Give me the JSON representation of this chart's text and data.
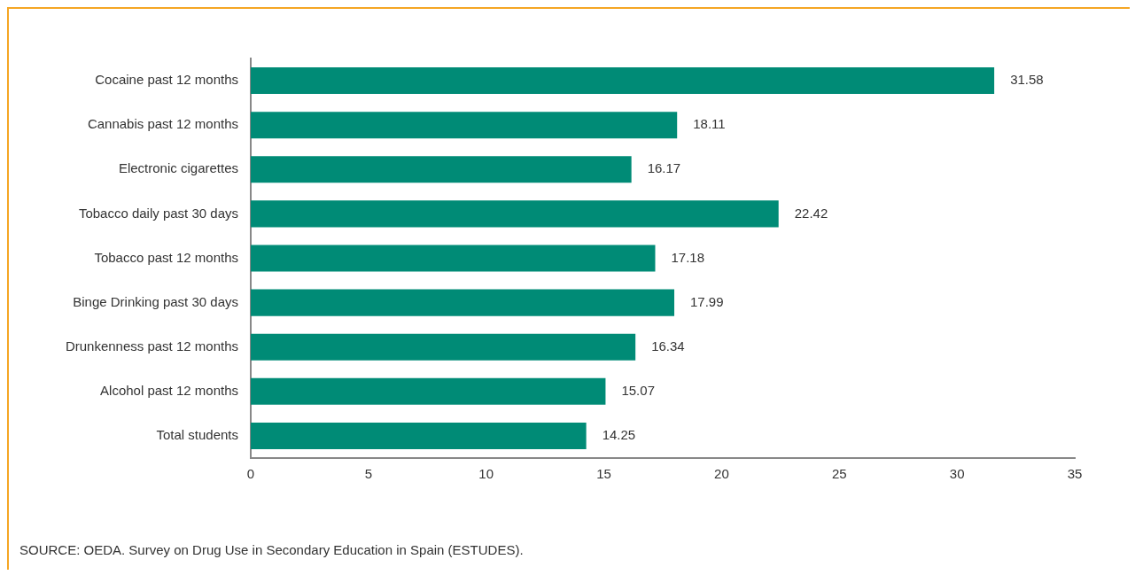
{
  "chart_data": {
    "type": "bar",
    "orientation": "horizontal",
    "categories": [
      "Cocaine past 12 months",
      "Cannabis past 12 months",
      "Electronic cigarettes",
      "Tobacco daily past 30 days",
      "Tobacco past 12 months",
      "Binge Drinking past 30 days",
      "Drunkenness past 12 months",
      "Alcohol past 12 months",
      "Total students"
    ],
    "values": [
      31.58,
      18.11,
      16.17,
      22.42,
      17.18,
      17.99,
      16.34,
      15.07,
      14.25
    ],
    "color": "#008b76",
    "xlim": [
      0,
      35
    ],
    "xticks": [
      0,
      5,
      10,
      15,
      20,
      25,
      30,
      35
    ],
    "grid": false,
    "legend": false,
    "data_labels": true,
    "annotations": [
      "SOURCE: OEDA. Survey on Drug Use in Secondary Education in Spain (ESTUDES)."
    ]
  }
}
